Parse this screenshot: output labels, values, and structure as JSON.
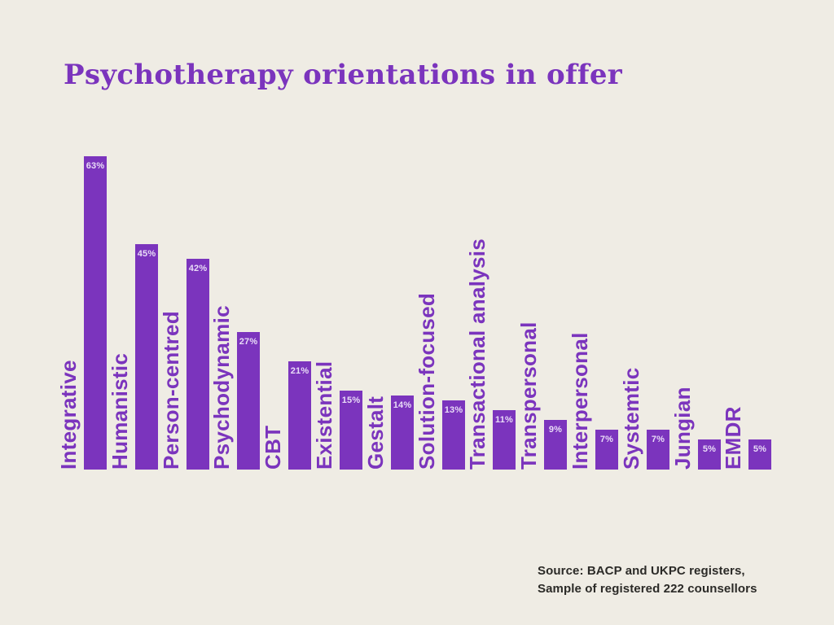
{
  "page": {
    "background_color": "#efece4"
  },
  "header": {
    "title": "Psychotherapy orientations in offer",
    "title_color": "#7b34bd"
  },
  "chart_data": {
    "type": "bar",
    "title": "Psychotherapy orientations in offer",
    "orientation": "vertical",
    "categories": [
      "Integrative",
      "Humanistic",
      "Person-centred",
      "Psychodynamic",
      "CBT",
      "Existential",
      "Gestalt",
      "Solution-focused",
      "Transactional analysis",
      "Transpersonal",
      "Interpersonal",
      "Systemtic",
      "Jungian",
      "EMDR"
    ],
    "values": [
      63,
      45,
      42,
      27,
      21,
      15,
      14,
      13,
      11,
      9,
      7,
      7,
      5,
      5
    ],
    "value_labels": [
      "63%",
      "45%",
      "42%",
      "27%",
      "21%",
      "15%",
      "14%",
      "13%",
      "11%",
      "9%",
      "7%",
      "7%",
      "5%",
      "5%"
    ],
    "value_suffix": "%",
    "xlabel": "",
    "ylabel": "",
    "ylim": [
      0,
      63
    ],
    "grid": false,
    "legend": false,
    "axes_shown": false,
    "bar_color": "#7b34bd",
    "category_label_color": "#7b34bd",
    "value_label_color": "#e9dcf7",
    "value_labels_position": "inside-top",
    "category_labels_rotated_degrees": 90
  },
  "footer": {
    "source_line1": "Source: BACP and UKPC registers,",
    "source_line2": "Sample of registered 222 counsellors",
    "source_color": "#2b2a27"
  }
}
